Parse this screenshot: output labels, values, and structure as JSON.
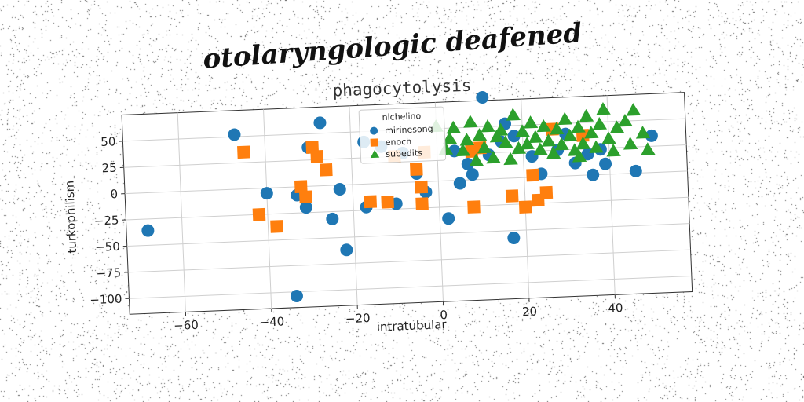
{
  "figure": {
    "supertitle": "otolaryngologic deafened"
  },
  "chart_data": {
    "type": "scatter",
    "title": "phagocytolysis",
    "xlabel": "intratubular",
    "ylabel": "turkophilism",
    "xlim": [
      -73,
      58
    ],
    "ylim": [
      -115,
      75
    ],
    "xticks": [
      -60,
      -40,
      -20,
      0,
      20,
      40
    ],
    "yticks": [
      -100,
      -75,
      -50,
      -25,
      0,
      25,
      50
    ],
    "grid": true,
    "legend": {
      "title": "nichelino",
      "placement": "top-center"
    },
    "series": [
      {
        "name": "mirinesong",
        "marker": "circle",
        "color": "#1f77b4",
        "points": [
          [
            -68,
            -36
          ],
          [
            -47,
            52
          ],
          [
            -40,
            -5
          ],
          [
            -33,
            -8
          ],
          [
            -31,
            -20
          ],
          [
            -30,
            37
          ],
          [
            -27,
            60
          ],
          [
            -25,
            -32
          ],
          [
            -23,
            -4
          ],
          [
            -22,
            -62
          ],
          [
            -17,
            -22
          ],
          [
            -17,
            40
          ],
          [
            -13,
            35
          ],
          [
            -10,
            -20
          ],
          [
            -8,
            28
          ],
          [
            -5,
            8
          ],
          [
            -3,
            -10
          ],
          [
            2,
            -36
          ],
          [
            4,
            28
          ],
          [
            5,
            -3
          ],
          [
            7,
            15
          ],
          [
            8,
            5
          ],
          [
            11,
            78
          ],
          [
            12,
            23
          ],
          [
            15,
            35
          ],
          [
            16,
            52
          ],
          [
            17,
            -57
          ],
          [
            18,
            40
          ],
          [
            22,
            20
          ],
          [
            24,
            3
          ],
          [
            28,
            25
          ],
          [
            30,
            40
          ],
          [
            32,
            12
          ],
          [
            35,
            20
          ],
          [
            36,
            0
          ],
          [
            38,
            24
          ],
          [
            39,
            10
          ],
          [
            46,
            2
          ],
          [
            50,
            35
          ],
          [
            -34,
            -104
          ]
        ]
      },
      {
        "name": "enoch",
        "marker": "square",
        "color": "#ff7f0e",
        "points": [
          [
            -45,
            35
          ],
          [
            -42,
            -25
          ],
          [
            -38,
            -37
          ],
          [
            -32,
            0
          ],
          [
            -31,
            -10
          ],
          [
            -29,
            37
          ],
          [
            -28,
            28
          ],
          [
            -26,
            15
          ],
          [
            -16,
            -17
          ],
          [
            -12,
            -18
          ],
          [
            -10,
            25
          ],
          [
            -5,
            12
          ],
          [
            -4,
            -5
          ],
          [
            -4,
            -21
          ],
          [
            -3,
            28
          ],
          [
            8,
            -26
          ],
          [
            8,
            27
          ],
          [
            10,
            30
          ],
          [
            17,
            -17
          ],
          [
            20,
            -28
          ],
          [
            22,
            2
          ],
          [
            23,
            -22
          ],
          [
            25,
            -15
          ],
          [
            27,
            45
          ],
          [
            34,
            38
          ]
        ]
      },
      {
        "name": "subedits",
        "marker": "triangle",
        "color": "#2ca02c",
        "points": [
          [
            0,
            52
          ],
          [
            2,
            30
          ],
          [
            4,
            50
          ],
          [
            6,
            28
          ],
          [
            7,
            38
          ],
          [
            8,
            55
          ],
          [
            9,
            18
          ],
          [
            10,
            42
          ],
          [
            11,
            30
          ],
          [
            12,
            50
          ],
          [
            13,
            20
          ],
          [
            15,
            46
          ],
          [
            16,
            34
          ],
          [
            17,
            18
          ],
          [
            18,
            60
          ],
          [
            19,
            28
          ],
          [
            20,
            44
          ],
          [
            21,
            32
          ],
          [
            22,
            52
          ],
          [
            23,
            38
          ],
          [
            24,
            26
          ],
          [
            25,
            48
          ],
          [
            26,
            34
          ],
          [
            27,
            22
          ],
          [
            28,
            45
          ],
          [
            29,
            30
          ],
          [
            30,
            54
          ],
          [
            31,
            38
          ],
          [
            32,
            24
          ],
          [
            33,
            46
          ],
          [
            34,
            30
          ],
          [
            35,
            56
          ],
          [
            36,
            40
          ],
          [
            37,
            26
          ],
          [
            38,
            48
          ],
          [
            39,
            62
          ],
          [
            40,
            34
          ],
          [
            41,
            22
          ],
          [
            42,
            44
          ],
          [
            44,
            50
          ],
          [
            45,
            28
          ],
          [
            46,
            60
          ],
          [
            48,
            38
          ],
          [
            49,
            22
          ],
          [
            14,
            40
          ],
          [
            3,
            40
          ],
          [
            33,
            18
          ]
        ]
      }
    ]
  }
}
